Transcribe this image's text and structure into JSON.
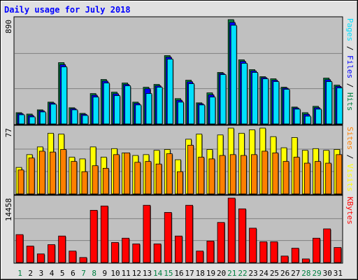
{
  "chart_data": [
    {
      "type": "bar",
      "title": "Daily usage for July 2018",
      "ylim": [
        0,
        890
      ],
      "yticks": [
        890
      ],
      "series": [
        {
          "name": "Hits",
          "color": "#008040",
          "values": [
            96,
            84,
            120,
            186,
            523,
            138,
            90,
            259,
            379,
            271,
            349,
            186,
            313,
            337,
            583,
            216,
            373,
            180,
            265,
            439,
            890,
            547,
            463,
            403,
            385,
            313,
            144,
            96,
            150,
            391,
            331
          ]
        },
        {
          "name": "Files",
          "color": "#0000ff",
          "values": [
            88,
            72,
            112,
            178,
            505,
            130,
            82,
            245,
            365,
            257,
            337,
            175,
            300,
            325,
            569,
            202,
            359,
            172,
            248,
            430,
            866,
            533,
            452,
            395,
            373,
            305,
            136,
            82,
            138,
            377,
            320
          ]
        },
        {
          "name": "Pages",
          "color": "#00e0ff",
          "values": [
            78,
            60,
            102,
            168,
            487,
            120,
            72,
            229,
            349,
            241,
            325,
            162,
            259,
            313,
            553,
            186,
            343,
            162,
            229,
            421,
            842,
            517,
            439,
            385,
            361,
            295,
            126,
            66,
            126,
            361,
            307
          ]
        }
      ]
    },
    {
      "type": "bar",
      "ylim": [
        0,
        77
      ],
      "yticks": [
        77
      ],
      "series": [
        {
          "name": "Visits",
          "color": "#ffff00",
          "values": [
            31,
            46,
            55,
            71,
            70,
            43,
            41,
            55,
            43,
            53,
            48,
            45,
            46,
            51,
            52,
            40,
            64,
            70,
            52,
            69,
            77,
            71,
            75,
            77,
            67,
            54,
            66,
            51,
            53,
            51,
            52
          ]
        },
        {
          "name": "Sites",
          "color": "#ff8000",
          "values": [
            28,
            42,
            50,
            49,
            52,
            38,
            26,
            33,
            30,
            46,
            48,
            37,
            38,
            35,
            47,
            26,
            57,
            43,
            41,
            45,
            46,
            45,
            46,
            50,
            48,
            38,
            43,
            36,
            38,
            36,
            46
          ]
        }
      ]
    },
    {
      "type": "bar",
      "ylim": [
        0,
        14458
      ],
      "yticks": [
        14458
      ],
      "categories": [
        "1",
        "2",
        "3",
        "4",
        "5",
        "6",
        "7",
        "8",
        "9",
        "10",
        "11",
        "12",
        "13",
        "14",
        "15",
        "16",
        "17",
        "18",
        "19",
        "20",
        "21",
        "22",
        "23",
        "24",
        "25",
        "26",
        "27",
        "28",
        "29",
        "30",
        "31"
      ],
      "weekend_categories": [
        "1",
        "7",
        "8",
        "14",
        "15",
        "21",
        "22",
        "28",
        "29"
      ],
      "weekend_color": "#008040",
      "series": [
        {
          "name": "KBytes",
          "color": "#ff0000",
          "values": [
            6265,
            3695,
            1928,
            4016,
            5944,
            2570,
            1124,
            11727,
            12690,
            4498,
            5462,
            4177,
            12851,
            4177,
            11245,
            5944,
            12851,
            2570,
            4819,
            8996,
            14458,
            12048,
            7711,
            4658,
            4658,
            1446,
            3213,
            803,
            5462,
            7550,
            3374
          ]
        }
      ]
    }
  ]
}
